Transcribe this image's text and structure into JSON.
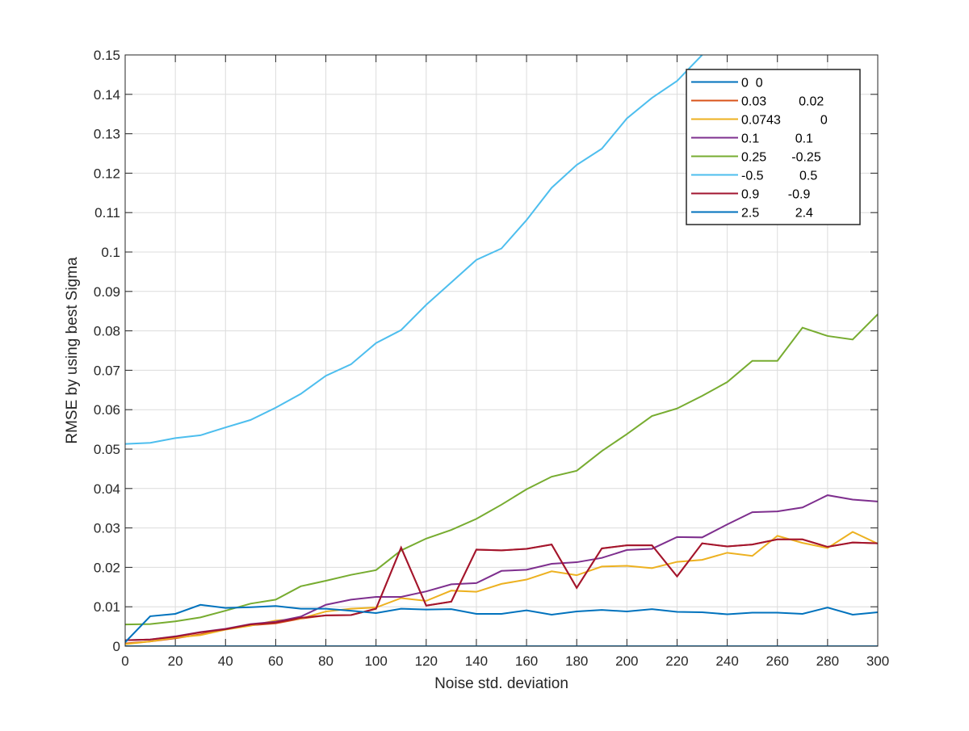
{
  "chart_data": {
    "type": "line",
    "xlabel": "Noise std. deviation",
    "ylabel": "RMSE by using best Sigma",
    "x": [
      0,
      10,
      20,
      30,
      40,
      50,
      60,
      70,
      80,
      90,
      100,
      110,
      120,
      130,
      140,
      150,
      160,
      170,
      180,
      190,
      200,
      210,
      220,
      230,
      240,
      250,
      260,
      270,
      280,
      290,
      300
    ],
    "xlim": [
      0,
      300
    ],
    "xticks": [
      0,
      20,
      40,
      60,
      80,
      100,
      120,
      140,
      160,
      180,
      200,
      220,
      240,
      260,
      280,
      300
    ],
    "ylim": [
      0,
      0.15
    ],
    "yticks": [
      0,
      0.01,
      0.02,
      0.03,
      0.04,
      0.05,
      0.06,
      0.07,
      0.08,
      0.09,
      0.1,
      0.11,
      0.12,
      0.13,
      0.14,
      0.15
    ],
    "grid": true,
    "legend": "upper right",
    "series": [
      {
        "name": "0  0",
        "color": "#0072bd",
        "values": [
          0,
          0,
          0,
          0,
          0,
          0,
          0,
          0,
          0,
          0,
          0,
          0,
          0,
          0,
          0,
          0,
          0,
          0,
          0,
          0,
          0,
          0,
          0,
          0,
          0,
          0,
          0,
          0,
          0,
          0,
          0
        ]
      },
      {
        "name": "0.03         0.02",
        "color": "#d95319",
        "values": [
          0.0007,
          0.0012,
          0.002,
          0.003,
          0.0043,
          0.0053,
          0.0058,
          0.007,
          0.0078,
          0.0079,
          0.0095,
          0.025,
          0.0103,
          0.0113,
          0.0245,
          0.0243,
          0.0247,
          0.0258,
          0.0148,
          0.0248,
          0.0256,
          0.0256,
          0.0177,
          0.0261,
          0.0253,
          0.0258,
          0.0271,
          0.0271,
          0.0252,
          0.0263,
          0.0261
        ]
      },
      {
        "name": "0.0743           0",
        "color": "#edb120",
        "values": [
          0.0005,
          0.0012,
          0.0022,
          0.0028,
          0.0042,
          0.0052,
          0.0065,
          0.007,
          0.0088,
          0.0095,
          0.0098,
          0.0122,
          0.0115,
          0.0141,
          0.0138,
          0.0158,
          0.0169,
          0.019,
          0.018,
          0.0202,
          0.0204,
          0.0198,
          0.0214,
          0.0219,
          0.0237,
          0.0229,
          0.028,
          0.0262,
          0.0249,
          0.029,
          0.026
        ]
      },
      {
        "name": "0.1          0.1",
        "color": "#7e2f8e",
        "values": [
          0.0015,
          0.0017,
          0.0025,
          0.0036,
          0.0044,
          0.0056,
          0.0062,
          0.0075,
          0.0105,
          0.0118,
          0.0125,
          0.0125,
          0.0139,
          0.0157,
          0.016,
          0.0191,
          0.0194,
          0.0209,
          0.0213,
          0.0224,
          0.0244,
          0.0247,
          0.0277,
          0.0276,
          0.0309,
          0.034,
          0.0342,
          0.0352,
          0.0383,
          0.0372,
          0.0367
        ]
      },
      {
        "name": "0.25       -0.25",
        "color": "#77ac30",
        "values": [
          0.0055,
          0.0056,
          0.0063,
          0.0073,
          0.009,
          0.0108,
          0.0118,
          0.0152,
          0.0166,
          0.0181,
          0.0193,
          0.0243,
          0.0273,
          0.0295,
          0.0323,
          0.0359,
          0.0398,
          0.043,
          0.0445,
          0.0495,
          0.0538,
          0.0584,
          0.0603,
          0.0635,
          0.067,
          0.0724,
          0.0724,
          0.0808,
          0.0787,
          0.0778,
          0.0842
        ]
      },
      {
        "name": "-0.5          0.5",
        "color": "#4dbeee",
        "values": [
          0.0513,
          0.0516,
          0.0528,
          0.0535,
          0.0555,
          0.0574,
          0.0605,
          0.064,
          0.0686,
          0.0715,
          0.0769,
          0.0802,
          0.0866,
          0.0923,
          0.098,
          0.1009,
          0.1081,
          0.1163,
          0.1221,
          0.1262,
          0.1339,
          0.1391,
          0.1434,
          0.15,
          null,
          null,
          null,
          null,
          null,
          null,
          null
        ]
      },
      {
        "name": "0.9        -0.9",
        "color": "#a2142f",
        "values": [
          0.0015,
          0.0017,
          0.0024,
          0.0035,
          0.0043,
          0.0055,
          0.006,
          0.0072,
          0.0078,
          0.0079,
          0.0095,
          0.025,
          0.0103,
          0.0113,
          0.0245,
          0.0243,
          0.0247,
          0.0258,
          0.0148,
          0.0248,
          0.0256,
          0.0256,
          0.0177,
          0.0261,
          0.0253,
          0.0258,
          0.0271,
          0.0271,
          0.0252,
          0.0263,
          0.0261
        ]
      },
      {
        "name": "2.5          2.4",
        "color": "#0072bd",
        "values": [
          0.001,
          0.0076,
          0.0082,
          0.0105,
          0.0097,
          0.0099,
          0.0102,
          0.0095,
          0.0095,
          0.009,
          0.0084,
          0.0095,
          0.0093,
          0.0094,
          0.0082,
          0.0082,
          0.0091,
          0.008,
          0.0088,
          0.0092,
          0.0088,
          0.0094,
          0.0087,
          0.0086,
          0.0081,
          0.0085,
          0.0085,
          0.0082,
          0.0098,
          0.008,
          0.0086
        ]
      }
    ]
  }
}
